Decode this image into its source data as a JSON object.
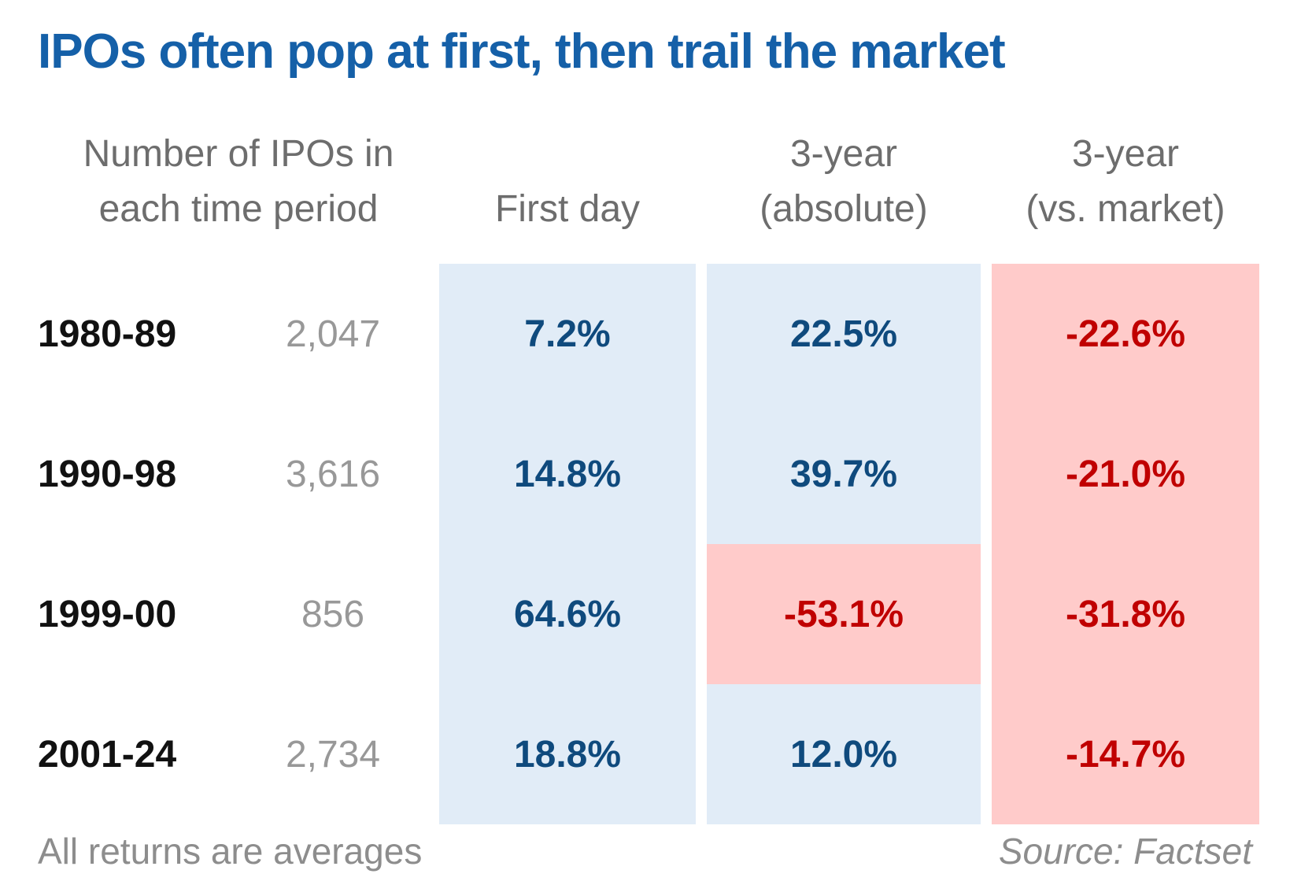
{
  "title": "IPOs often pop at first, then trail the market",
  "headers": {
    "period_count": {
      "line1": "Number of IPOs in",
      "line2": "each time period"
    },
    "first_day": {
      "label": "First day"
    },
    "absolute": {
      "line1": "3-year",
      "line2": "(absolute)"
    },
    "vs_market": {
      "line1": "3-year",
      "line2": "(vs. market)"
    }
  },
  "rows": [
    {
      "period": "1980-89",
      "count": "2,047",
      "first_day": "7.2%",
      "abs": "22.5%",
      "vs": "-22.6%"
    },
    {
      "period": "1990-98",
      "count": "3,616",
      "first_day": "14.8%",
      "abs": "39.7%",
      "vs": "-21.0%"
    },
    {
      "period": "1999-00",
      "count": "856",
      "first_day": "64.6%",
      "abs": "-53.1%",
      "vs": "-31.8%"
    },
    {
      "period": "2001-24",
      "count": "2,734",
      "first_day": "18.8%",
      "abs": "12.0%",
      "vs": "-14.7%"
    }
  ],
  "footer": {
    "note": "All returns are averages",
    "source": "Source: Factset"
  },
  "colors": {
    "title_blue": "#1560a8",
    "positive_text": "#0f4a7d",
    "negative_text": "#c00000",
    "positive_cell_bg": "#e1ecf7",
    "negative_cell_bg": "#ffcbca",
    "header_gray": "#6d6d6d",
    "count_gray": "#989898",
    "footer_gray": "#8d8d8d"
  },
  "chart_data": {
    "type": "table",
    "title": "IPOs often pop at first, then trail the market",
    "columns": [
      "Number of IPOs in each time period",
      "First day",
      "3-year (absolute)",
      "3-year (vs. market)"
    ],
    "rows": [
      {
        "period": "1980-89",
        "num_ipos": 2047,
        "first_day_pct": 7.2,
        "three_year_absolute_pct": 22.5,
        "three_year_vs_market_pct": -22.6
      },
      {
        "period": "1990-98",
        "num_ipos": 3616,
        "first_day_pct": 14.8,
        "three_year_absolute_pct": 39.7,
        "three_year_vs_market_pct": -21.0
      },
      {
        "period": "1999-00",
        "num_ipos": 856,
        "first_day_pct": 64.6,
        "three_year_absolute_pct": -53.1,
        "three_year_vs_market_pct": -31.8
      },
      {
        "period": "2001-24",
        "num_ipos": 2734,
        "first_day_pct": 18.8,
        "three_year_absolute_pct": 12.0,
        "three_year_vs_market_pct": -14.7
      }
    ],
    "cell_shading_rule": "positive returns on light blue, negative returns on light red",
    "notes": "All returns are averages",
    "source": "Source: Factset"
  }
}
